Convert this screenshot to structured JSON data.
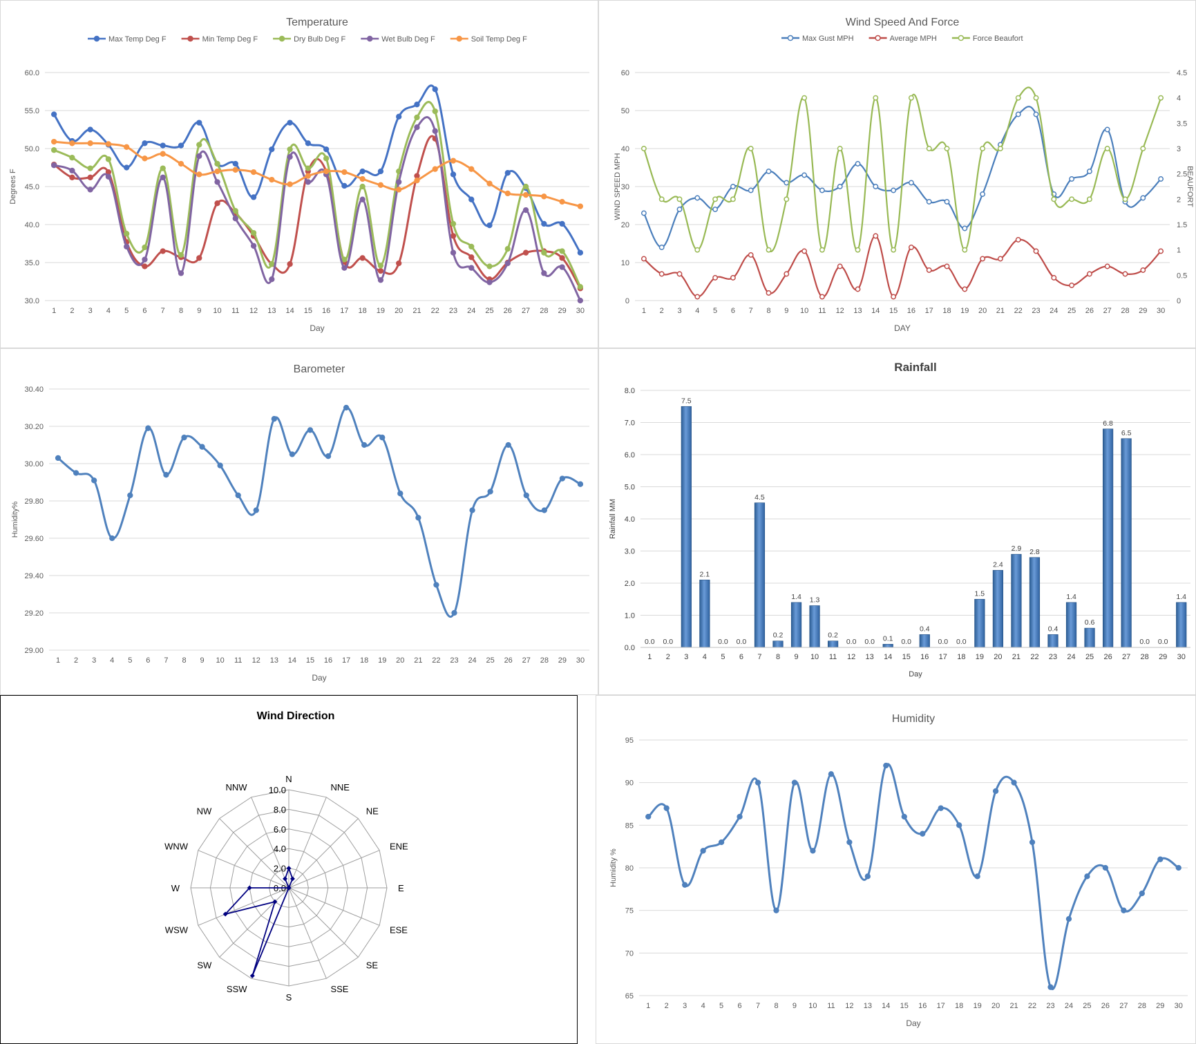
{
  "temperature": {
    "type": "line",
    "title": "Temperature",
    "xlabel": "Day",
    "ylabel": "Degrees F",
    "ylim": [
      30,
      60
    ],
    "yticks": [
      "30.0",
      "35.0",
      "40.0",
      "45.0",
      "50.0",
      "55.0",
      "60.0"
    ],
    "categories": [
      "1",
      "2",
      "3",
      "4",
      "5",
      "6",
      "7",
      "8",
      "9",
      "10",
      "11",
      "12",
      "13",
      "14",
      "15",
      "16",
      "17",
      "18",
      "19",
      "20",
      "21",
      "22",
      "23",
      "24",
      "25",
      "26",
      "27",
      "28",
      "29",
      "30"
    ],
    "series": [
      {
        "name": "Max Temp Deg F",
        "color": "#4472c4",
        "values": [
          54.5,
          51.0,
          52.5,
          50.5,
          47.5,
          50.7,
          50.4,
          50.4,
          53.4,
          48.0,
          48.0,
          43.6,
          49.9,
          53.4,
          50.7,
          49.9,
          45.1,
          47.0,
          47.0,
          54.2,
          55.8,
          57.8,
          46.6,
          43.3,
          39.9,
          46.8,
          44.8,
          40.1,
          40.1,
          36.3
        ]
      },
      {
        "name": "Min Temp Deg F",
        "color": "#c0504d",
        "values": [
          47.9,
          46.2,
          46.2,
          46.9,
          37.7,
          34.5,
          36.5,
          35.7,
          35.6,
          42.8,
          41.5,
          38.5,
          34.8,
          34.8,
          47.0,
          47.0,
          35.1,
          35.6,
          33.9,
          34.9,
          46.4,
          51.3,
          38.5,
          35.7,
          32.8,
          35.0,
          36.3,
          36.5,
          35.6,
          31.6
        ]
      },
      {
        "name": "Dry Bulb Deg F",
        "color": "#9bbb59",
        "values": [
          49.8,
          48.8,
          47.4,
          48.6,
          38.8,
          37.0,
          47.4,
          36.0,
          50.5,
          48.0,
          41.8,
          38.9,
          34.8,
          49.9,
          47.4,
          48.7,
          35.4,
          45.0,
          34.6,
          47.0,
          54.1,
          54.9,
          40.1,
          37.1,
          34.5,
          36.8,
          45.0,
          36.3,
          36.5,
          31.8
        ]
      },
      {
        "name": "Wet Bulb Deg F",
        "color": "#8064a2",
        "values": [
          47.8,
          47.1,
          44.6,
          46.3,
          37.1,
          35.4,
          46.2,
          33.6,
          49.0,
          45.6,
          40.8,
          37.2,
          32.8,
          48.9,
          45.6,
          46.6,
          34.3,
          43.3,
          32.7,
          45.6,
          52.8,
          52.3,
          36.3,
          34.3,
          32.4,
          34.9,
          41.9,
          33.6,
          34.4,
          30.0
        ]
      },
      {
        "name": "Soil Temp Deg F",
        "color": "#f79646",
        "values": [
          50.9,
          50.7,
          50.7,
          50.6,
          50.2,
          48.7,
          49.3,
          48.0,
          46.6,
          47.0,
          47.2,
          46.9,
          45.9,
          45.3,
          46.4,
          47.0,
          46.9,
          46.0,
          45.2,
          44.6,
          45.8,
          47.3,
          48.4,
          47.3,
          45.4,
          44.1,
          43.9,
          43.7,
          43.0,
          42.4
        ]
      }
    ]
  },
  "wind": {
    "type": "line",
    "title": "Wind Speed And Force",
    "xlabel": "DAY",
    "ylabel": "WIND SPEED MPH",
    "y2label": "BEAUFORT",
    "ylim": [
      0,
      60
    ],
    "y2lim": [
      0,
      4.5
    ],
    "yticks": [
      "0",
      "10",
      "20",
      "30",
      "40",
      "50",
      "60"
    ],
    "y2ticks": [
      "0",
      "0.5",
      "1",
      "1.5",
      "2",
      "2.5",
      "3",
      "3.5",
      "4",
      "4.5"
    ],
    "categories": [
      "1",
      "2",
      "3",
      "4",
      "5",
      "6",
      "7",
      "8",
      "9",
      "10",
      "11",
      "12",
      "13",
      "14",
      "15",
      "16",
      "17",
      "18",
      "19",
      "20",
      "21",
      "22",
      "23",
      "24",
      "25",
      "26",
      "27",
      "28",
      "29",
      "30"
    ],
    "series": [
      {
        "name": "Max Gust MPH",
        "axis": "left",
        "color": "#4a7ebb",
        "values": [
          23,
          14,
          24,
          27,
          24,
          30,
          29,
          34,
          31,
          33,
          29,
          30,
          36,
          30,
          29,
          31,
          26,
          26,
          19,
          28,
          41,
          49,
          49,
          28,
          32,
          34,
          45,
          26,
          27,
          32
        ]
      },
      {
        "name": "Average MPH",
        "axis": "left",
        "color": "#be4b48",
        "values": [
          11,
          7,
          7,
          1,
          6,
          6,
          12,
          2,
          7,
          13,
          1,
          9,
          3,
          17,
          1,
          14,
          8,
          9,
          3,
          11,
          11,
          16,
          13,
          6,
          4,
          7,
          9,
          7,
          8,
          13
        ]
      },
      {
        "name": "Force Beaufort",
        "axis": "right",
        "color": "#98b954",
        "values": [
          3,
          2,
          2,
          1,
          2,
          2,
          3,
          1,
          2,
          4,
          1,
          3,
          1,
          4,
          1,
          4,
          3,
          3,
          1,
          3,
          3,
          4,
          4,
          2,
          2,
          2,
          3,
          2,
          3,
          4
        ]
      }
    ]
  },
  "barometer": {
    "type": "line",
    "title": "Barometer",
    "xlabel": "Day",
    "ylabel": "Humidity%",
    "ylim": [
      29.0,
      30.4
    ],
    "yticks": [
      "29.00",
      "29.20",
      "29.40",
      "29.60",
      "29.80",
      "30.00",
      "30.20",
      "30.40"
    ],
    "categories": [
      "1",
      "2",
      "3",
      "4",
      "5",
      "6",
      "7",
      "8",
      "9",
      "10",
      "11",
      "12",
      "13",
      "14",
      "15",
      "16",
      "17",
      "18",
      "19",
      "20",
      "21",
      "22",
      "23",
      "24",
      "25",
      "26",
      "27",
      "28",
      "29",
      "30"
    ],
    "series": [
      {
        "name": "Barometer",
        "color": "#4f81bd",
        "values": [
          30.03,
          29.95,
          29.91,
          29.6,
          29.83,
          30.19,
          29.94,
          30.14,
          30.09,
          29.99,
          29.83,
          29.75,
          30.24,
          30.05,
          30.18,
          30.04,
          30.3,
          30.1,
          30.14,
          29.84,
          29.71,
          29.35,
          29.2,
          29.75,
          29.85,
          30.1,
          29.83,
          29.75,
          29.92,
          29.89
        ]
      }
    ]
  },
  "rainfall": {
    "type": "bar",
    "title": "Rainfall",
    "xlabel": "Day",
    "ylabel": "Rainfall MM",
    "ylim": [
      0,
      8
    ],
    "yticks": [
      "0.0",
      "1.0",
      "2.0",
      "3.0",
      "4.0",
      "5.0",
      "6.0",
      "7.0",
      "8.0"
    ],
    "categories": [
      "1",
      "2",
      "3",
      "4",
      "5",
      "6",
      "7",
      "8",
      "9",
      "10",
      "11",
      "12",
      "13",
      "14",
      "15",
      "16",
      "17",
      "18",
      "19",
      "20",
      "21",
      "22",
      "23",
      "24",
      "25",
      "26",
      "27",
      "28",
      "29",
      "30"
    ],
    "values": [
      0.0,
      0.0,
      7.5,
      2.1,
      0.0,
      0.0,
      4.5,
      0.2,
      1.4,
      1.3,
      0.2,
      0.0,
      0.0,
      0.1,
      0.0,
      0.4,
      0.0,
      0.0,
      1.5,
      2.4,
      2.9,
      2.8,
      0.4,
      1.4,
      0.6,
      6.8,
      6.5,
      0.0,
      0.0,
      1.4
    ],
    "labels": [
      "0.0",
      "0.0",
      "7.5",
      "2.1",
      "0.0",
      "0.0",
      "4.5",
      "0.2",
      "1.4",
      "1.3",
      "0.2",
      "0.0",
      "0.0",
      "0.1",
      "0.0",
      "0.4",
      "0.0",
      "0.0",
      "1.5",
      "2.4",
      "2.9",
      "2.8",
      "0.4",
      "1.4",
      "0.6",
      "6.8",
      "6.5",
      "0.0",
      "0.0",
      "1.4"
    ],
    "color": "#4f81bd"
  },
  "wind_direction": {
    "type": "radar",
    "title": "Wind Direction",
    "rmax": 10,
    "rticks": [
      "0.0",
      "2.0",
      "4.0",
      "6.0",
      "8.0",
      "10.0"
    ],
    "directions": [
      "N",
      "NNE",
      "NE",
      "ENE",
      "E",
      "ESE",
      "SE",
      "SSE",
      "S",
      "SSW",
      "SW",
      "WSW",
      "W",
      "WNW",
      "NW",
      "NNW"
    ],
    "values": [
      2.0,
      1.0,
      0,
      0,
      0,
      0,
      0,
      0,
      0,
      9.7,
      2.0,
      7.0,
      4.0,
      0,
      0,
      1.0
    ],
    "color": "#000080"
  },
  "humidity": {
    "type": "line",
    "title": "Humidity",
    "xlabel": "Day",
    "ylabel": "Humidity %",
    "ylim": [
      65,
      95
    ],
    "yticks": [
      "65",
      "70",
      "75",
      "80",
      "85",
      "90",
      "95"
    ],
    "categories": [
      "1",
      "2",
      "3",
      "4",
      "5",
      "6",
      "7",
      "8",
      "9",
      "10",
      "11",
      "12",
      "13",
      "14",
      "15",
      "16",
      "17",
      "18",
      "19",
      "20",
      "21",
      "22",
      "23",
      "24",
      "25",
      "26",
      "27",
      "28",
      "29",
      "30"
    ],
    "series": [
      {
        "name": "Humidity",
        "color": "#4f81bd",
        "values": [
          86,
          87,
          78,
          82,
          83,
          86,
          90,
          75,
          90,
          82,
          91,
          83,
          79,
          92,
          86,
          84,
          87,
          85,
          79,
          89,
          90,
          83,
          66,
          74,
          79,
          80,
          75,
          77,
          81,
          80
        ]
      }
    ]
  }
}
